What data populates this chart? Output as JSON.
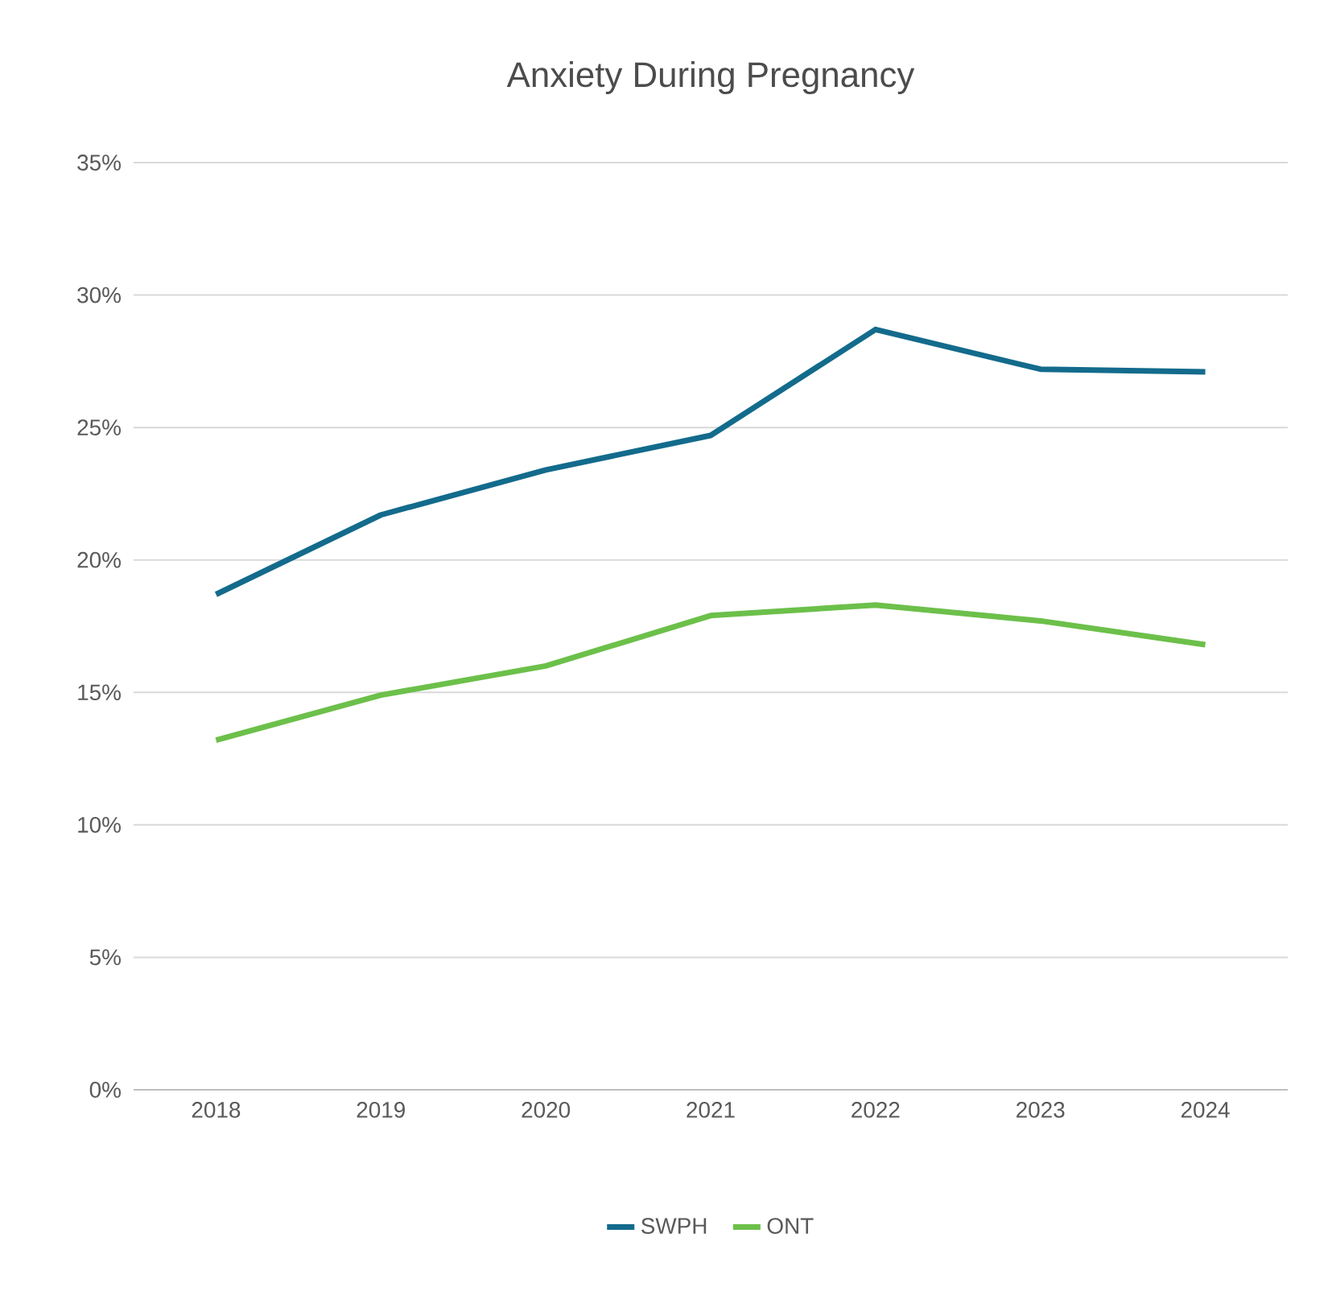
{
  "chart_data": {
    "type": "line",
    "title": "Anxiety During Pregnancy",
    "categories": [
      "2018",
      "2019",
      "2020",
      "2021",
      "2022",
      "2023",
      "2024"
    ],
    "series": [
      {
        "name": "SWPH",
        "color": "#136b8c",
        "values": [
          18.7,
          21.7,
          23.4,
          24.7,
          28.7,
          27.2,
          27.1
        ]
      },
      {
        "name": "ONT",
        "color": "#6cc04a",
        "values": [
          13.2,
          14.9,
          16.0,
          17.9,
          18.3,
          17.7,
          16.8
        ]
      }
    ],
    "ylim": [
      0,
      35
    ],
    "yticks": [
      {
        "value": 0,
        "label": "0%"
      },
      {
        "value": 5,
        "label": "5%"
      },
      {
        "value": 10,
        "label": "10%"
      },
      {
        "value": 15,
        "label": "15%"
      },
      {
        "value": 20,
        "label": "20%"
      },
      {
        "value": 25,
        "label": "25%"
      },
      {
        "value": 30,
        "label": "30%"
      },
      {
        "value": 35,
        "label": "35%"
      }
    ],
    "grid": "y",
    "legend": "bottom",
    "marker": "none",
    "line_style": "solid"
  }
}
